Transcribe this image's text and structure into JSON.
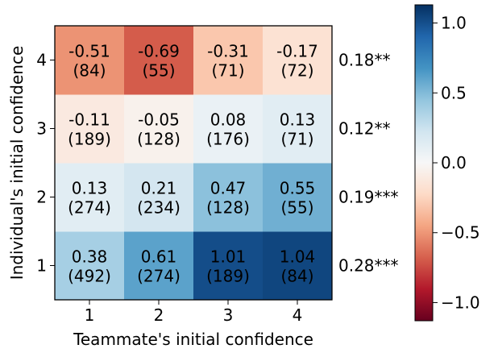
{
  "chart_data": {
    "type": "heatmap",
    "title": "",
    "xlabel": "Teammate's initial confidence",
    "ylabel": "Individual's initial confidence",
    "x_categories": [
      "1",
      "2",
      "3",
      "4"
    ],
    "y_categories": [
      "1",
      "2",
      "3",
      "4"
    ],
    "cells": [
      [
        "0.38",
        "0.61",
        "1.01",
        "1.04"
      ],
      [
        "0.13",
        "0.21",
        "0.47",
        "0.55"
      ],
      [
        "-0.11",
        "-0.05",
        "0.08",
        "0.13"
      ],
      [
        "-0.51",
        "-0.69",
        "-0.31",
        "-0.17"
      ]
    ],
    "counts": [
      [
        "(492)",
        "(274)",
        "(189)",
        "(84)"
      ],
      [
        "(274)",
        "(234)",
        "(128)",
        "(55)"
      ],
      [
        "(189)",
        "(128)",
        "(176)",
        "(71)"
      ],
      [
        "(84)",
        "(55)",
        "(71)",
        "(72)"
      ]
    ],
    "row_annotations": [
      "0.28***",
      "0.19***",
      "0.12**",
      "0.18**"
    ],
    "colorbar": {
      "colormap": "RdBu",
      "range": [
        -1.13,
        1.13
      ],
      "ticks": [
        "1.0",
        "0.5",
        "0.0",
        "−0.5",
        "−1.0"
      ],
      "tick_values": [
        1.0,
        0.5,
        0.0,
        -0.5,
        -1.0
      ]
    }
  }
}
